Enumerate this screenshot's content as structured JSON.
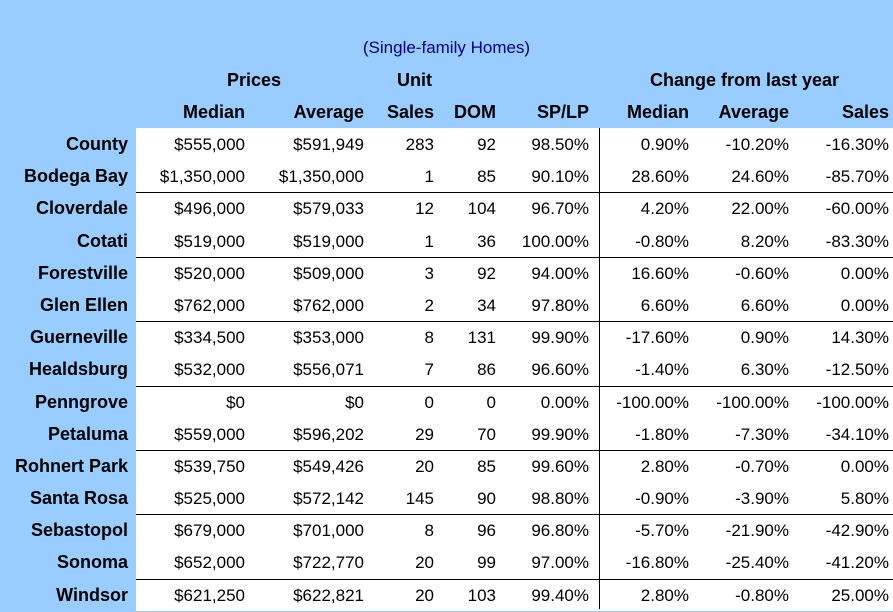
{
  "subtitle": "(Single-family Homes)",
  "headers": {
    "prices": "Prices",
    "unit": "Unit",
    "change": "Change from last year",
    "median": "Median",
    "average": "Average",
    "sales": "Sales",
    "dom": "DOM",
    "splp": "SP/LP",
    "chg_median": "Median",
    "chg_average": "Average",
    "chg_sales": "Sales"
  },
  "rows": [
    {
      "name": "County",
      "median": "$555,000",
      "average": "$591,949",
      "sales": "283",
      "dom": "92",
      "splp": "98.50%",
      "chg_median": "0.90%",
      "chg_average": "-10.20%",
      "chg_sales": "-16.30%"
    },
    {
      "name": "Bodega Bay",
      "median": "$1,350,000",
      "average": "$1,350,000",
      "sales": "1",
      "dom": "85",
      "splp": "90.10%",
      "chg_median": "28.60%",
      "chg_average": "24.60%",
      "chg_sales": "-85.70%"
    },
    {
      "name": "Cloverdale",
      "median": "$496,000",
      "average": "$579,033",
      "sales": "12",
      "dom": "104",
      "splp": "96.70%",
      "chg_median": "4.20%",
      "chg_average": "22.00%",
      "chg_sales": "-60.00%"
    },
    {
      "name": "Cotati",
      "median": "$519,000",
      "average": "$519,000",
      "sales": "1",
      "dom": "36",
      "splp": "100.00%",
      "chg_median": "-0.80%",
      "chg_average": "8.20%",
      "chg_sales": "-83.30%"
    },
    {
      "name": "Forestville",
      "median": "$520,000",
      "average": "$509,000",
      "sales": "3",
      "dom": "92",
      "splp": "94.00%",
      "chg_median": "16.60%",
      "chg_average": "-0.60%",
      "chg_sales": "0.00%"
    },
    {
      "name": "Glen Ellen",
      "median": "$762,000",
      "average": "$762,000",
      "sales": "2",
      "dom": "34",
      "splp": "97.80%",
      "chg_median": "6.60%",
      "chg_average": "6.60%",
      "chg_sales": "0.00%"
    },
    {
      "name": "Guerneville",
      "median": "$334,500",
      "average": "$353,000",
      "sales": "8",
      "dom": "131",
      "splp": "99.90%",
      "chg_median": "-17.60%",
      "chg_average": "0.90%",
      "chg_sales": "14.30%"
    },
    {
      "name": "Healdsburg",
      "median": "$532,000",
      "average": "$556,071",
      "sales": "7",
      "dom": "86",
      "splp": "96.60%",
      "chg_median": "-1.40%",
      "chg_average": "6.30%",
      "chg_sales": "-12.50%"
    },
    {
      "name": "Penngrove",
      "median": "$0",
      "average": "$0",
      "sales": "0",
      "dom": "0",
      "splp": "0.00%",
      "chg_median": "-100.00%",
      "chg_average": "-100.00%",
      "chg_sales": "-100.00%"
    },
    {
      "name": "Petaluma",
      "median": "$559,000",
      "average": "$596,202",
      "sales": "29",
      "dom": "70",
      "splp": "99.90%",
      "chg_median": "-1.80%",
      "chg_average": "-7.30%",
      "chg_sales": "-34.10%"
    },
    {
      "name": "Rohnert Park",
      "median": "$539,750",
      "average": "$549,426",
      "sales": "20",
      "dom": "85",
      "splp": "99.60%",
      "chg_median": "2.80%",
      "chg_average": "-0.70%",
      "chg_sales": "0.00%"
    },
    {
      "name": "Santa Rosa",
      "median": "$525,000",
      "average": "$572,142",
      "sales": "145",
      "dom": "90",
      "splp": "98.80%",
      "chg_median": "-0.90%",
      "chg_average": "-3.90%",
      "chg_sales": "5.80%"
    },
    {
      "name": "Sebastopol",
      "median": "$679,000",
      "average": "$701,000",
      "sales": "8",
      "dom": "96",
      "splp": "96.80%",
      "chg_median": "-5.70%",
      "chg_average": "-21.90%",
      "chg_sales": "-42.90%"
    },
    {
      "name": "Sonoma",
      "median": "$652,000",
      "average": "$722,770",
      "sales": "20",
      "dom": "99",
      "splp": "97.00%",
      "chg_median": "-16.80%",
      "chg_average": "-25.40%",
      "chg_sales": "-41.20%"
    },
    {
      "name": "Windsor",
      "median": "$621,250",
      "average": "$622,821",
      "sales": "20",
      "dom": "103",
      "splp": "99.40%",
      "chg_median": "2.80%",
      "chg_average": "-0.80%",
      "chg_sales": "25.00%"
    }
  ]
}
